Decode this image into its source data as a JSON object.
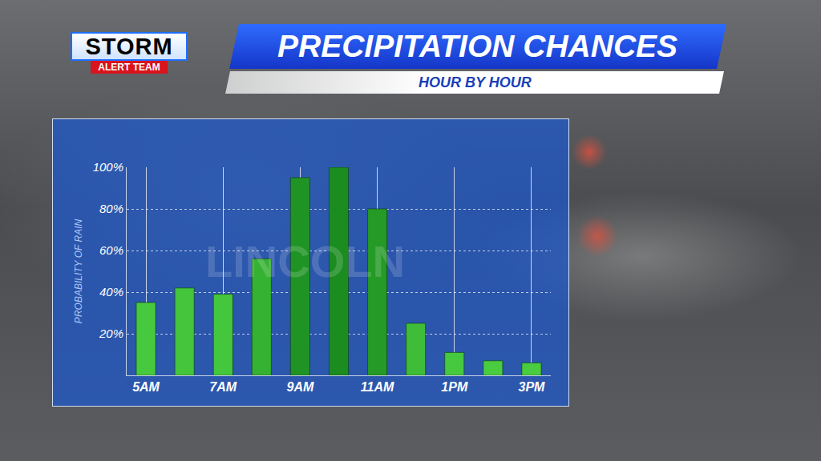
{
  "chart_data": {
    "type": "bar",
    "title": "PRECIPITATION CHANCES",
    "subtitle": "HOUR BY HOUR",
    "logo": [
      "STORM",
      "ALERT TEAM"
    ],
    "annotations": [
      "LINCOLN"
    ],
    "y_label": "PROBABILITY OF RAIN",
    "categories": [
      "5AM",
      null,
      "7AM",
      null,
      "9AM",
      null,
      "11AM",
      null,
      "1PM",
      null,
      "3PM"
    ],
    "values": [
      35,
      42,
      39,
      56,
      95,
      100,
      80,
      25,
      11,
      7,
      6
    ],
    "colors": [
      "#47c93f",
      "#44c53c",
      "#45c73d",
      "#36b232",
      "#1f9424",
      "#1b8c20",
      "#259a27",
      "#3fbd39",
      "#47c93f",
      "#4acc41",
      "#4acc41"
    ],
    "ylim": [
      0,
      100
    ],
    "yticks": [
      {
        "value": 20,
        "label": "20%"
      },
      {
        "value": 40,
        "label": "40%"
      },
      {
        "value": 60,
        "label": "60%"
      },
      {
        "value": 80,
        "label": "80%"
      },
      {
        "value": 100,
        "label": "100%"
      }
    ],
    "grid": true
  }
}
